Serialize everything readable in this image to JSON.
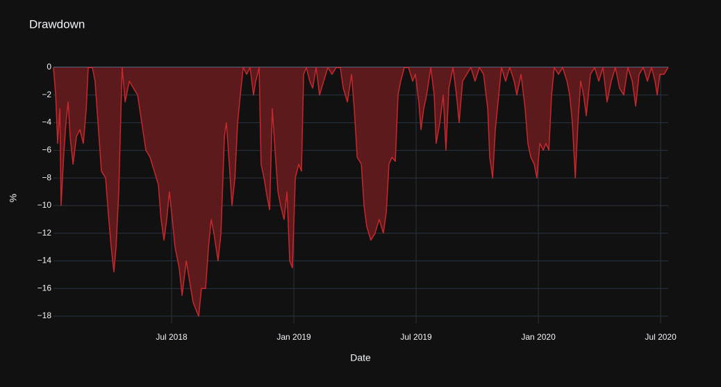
{
  "chart_data": {
    "type": "area",
    "title": "Drawdown",
    "x_label": "Date",
    "y_label": "%",
    "fill_color": "#5c1a1c",
    "line_color": "#c8282d",
    "grid": true,
    "xlim": [
      2018.017,
      2020.531
    ],
    "ylim": [
      -18.5,
      0
    ],
    "xticks": [
      {
        "value": 2018.5,
        "label": "Jul 2018"
      },
      {
        "value": 2019.0,
        "label": "Jan 2019"
      },
      {
        "value": 2019.5,
        "label": "Jul 2019"
      },
      {
        "value": 2020.0,
        "label": "Jan 2020"
      },
      {
        "value": 2020.5,
        "label": "Jul 2020"
      }
    ],
    "yticks": [
      0,
      {
        "value": -2,
        "label": "−2"
      },
      {
        "value": -4,
        "label": "−4"
      },
      {
        "value": -6,
        "label": "−6"
      },
      {
        "value": -8,
        "label": "−8"
      },
      {
        "value": -10,
        "label": "−10"
      },
      {
        "value": -12,
        "label": "−12"
      },
      {
        "value": -14,
        "label": "−14"
      },
      {
        "value": -16,
        "label": "−16"
      },
      {
        "value": -18,
        "label": "−18"
      }
    ],
    "x": [
      2018.017,
      2018.026,
      2018.034,
      2018.043,
      2018.048,
      2018.06,
      2018.068,
      2018.077,
      2018.085,
      2018.097,
      2018.111,
      2018.125,
      2018.139,
      2018.151,
      2018.159,
      2018.176,
      2018.187,
      2018.199,
      2018.213,
      2018.23,
      2018.241,
      2018.253,
      2018.264,
      2018.273,
      2018.284,
      2018.293,
      2018.298,
      2018.31,
      2018.327,
      2018.344,
      2018.361,
      2018.378,
      2018.395,
      2018.412,
      2018.429,
      2018.446,
      2018.457,
      2018.469,
      2018.48,
      2018.491,
      2018.503,
      2018.514,
      2018.531,
      2018.543,
      2018.56,
      2018.574,
      2018.588,
      2018.599,
      2018.611,
      2018.622,
      2018.639,
      2018.651,
      2018.662,
      2018.673,
      2018.69,
      2018.702,
      2018.716,
      2018.724,
      2018.736,
      2018.747,
      2018.759,
      2018.77,
      2018.781,
      2018.793,
      2018.807,
      2018.821,
      2018.835,
      2018.844,
      2018.858,
      2018.866,
      2018.878,
      2018.892,
      2018.901,
      2018.912,
      2018.923,
      2018.935,
      2018.946,
      2018.96,
      2018.972,
      2018.983,
      2018.994,
      2019.006,
      2019.02,
      2019.031,
      2019.04,
      2019.051,
      2019.065,
      2019.077,
      2019.091,
      2019.105,
      2019.122,
      2019.139,
      2019.156,
      2019.173,
      2019.19,
      2019.202,
      2019.219,
      2019.236,
      2019.247,
      2019.259,
      2019.276,
      2019.287,
      2019.298,
      2019.315,
      2019.332,
      2019.349,
      2019.366,
      2019.378,
      2019.389,
      2019.401,
      2019.415,
      2019.426,
      2019.437,
      2019.452,
      2019.469,
      2019.486,
      2019.497,
      2019.511,
      2019.52,
      2019.531,
      2019.543,
      2019.56,
      2019.574,
      2019.582,
      2019.597,
      2019.611,
      2019.622,
      2019.634,
      2019.651,
      2019.665,
      2019.676,
      2019.69,
      2019.707,
      2019.724,
      2019.741,
      2019.759,
      2019.776,
      2019.793,
      2019.801,
      2019.813,
      2019.824,
      2019.838,
      2019.849,
      2019.866,
      2019.883,
      2019.901,
      2019.912,
      2019.929,
      2019.946,
      2019.957,
      2019.969,
      2019.983,
      2019.994,
      2020.006,
      2020.02,
      2020.031,
      2020.043,
      2020.054,
      2020.065,
      2020.082,
      2020.099,
      2020.117,
      2020.128,
      2020.139,
      2020.151,
      2020.162,
      2020.173,
      2020.185,
      2020.196,
      2020.213,
      2020.23,
      2020.247,
      2020.264,
      2020.281,
      2020.298,
      2020.315,
      2020.332,
      2020.349,
      2020.366,
      2020.384,
      2020.398,
      2020.412,
      2020.429,
      2020.446,
      2020.463,
      2020.477,
      2020.486,
      2020.497,
      2020.514,
      2020.531
    ],
    "values": [
      0,
      -2,
      -5.5,
      -3,
      -10,
      -6,
      -4,
      -2.5,
      -5,
      -7,
      -5,
      -4.5,
      -5.5,
      -3,
      0,
      0,
      -1,
      -4,
      -7.5,
      -8,
      -10.5,
      -13,
      -14.8,
      -13,
      -9,
      -3,
      0,
      -2.5,
      -1,
      -1.5,
      -2,
      -4,
      -6,
      -6.5,
      -7.5,
      -8.5,
      -11,
      -12.5,
      -11,
      -9,
      -11,
      -13,
      -14.5,
      -16.5,
      -14,
      -15.5,
      -17,
      -17.5,
      -18,
      -16,
      -16,
      -13,
      -11,
      -12,
      -14,
      -12,
      -5,
      -4,
      -7,
      -10,
      -8,
      -4,
      -2,
      0,
      -0.5,
      0,
      -2,
      -1,
      0,
      -7,
      -8,
      -9.5,
      -10.3,
      -3,
      -6,
      -9,
      -10,
      -11,
      -9,
      -14,
      -14.5,
      -8,
      -7,
      -7.5,
      -0.5,
      0,
      -1,
      -1.5,
      0,
      -2,
      -1,
      0,
      -0.5,
      0,
      0,
      -1.5,
      -2.5,
      -0.5,
      -3,
      -6.5,
      -7,
      -10,
      -11.5,
      -12.5,
      -12,
      -11,
      -12,
      -10.5,
      -7,
      -6.5,
      -6.8,
      -2,
      -1,
      0,
      0,
      -1,
      -0.5,
      -2.5,
      -4.5,
      -3,
      -2,
      0,
      -2,
      -5.5,
      -4,
      -2,
      -6,
      -1.5,
      0,
      -2,
      -4,
      -1,
      -0.5,
      0,
      -1,
      0,
      -0.5,
      -3,
      -6.5,
      -8,
      -4.5,
      -2,
      0,
      -1,
      0,
      -1,
      -2,
      -0.5,
      -3,
      -5.5,
      -6.5,
      -7,
      -8,
      -5.5,
      -6,
      -5.5,
      -6,
      -2,
      0,
      -0.5,
      0,
      -1,
      -2,
      -4,
      -8,
      -4,
      -1,
      -2,
      -3.5,
      -0.5,
      0,
      -1,
      0,
      -2.5,
      -1,
      0,
      -1.5,
      -2,
      0,
      -1,
      -2.8,
      -0.5,
      0,
      -1,
      0,
      -1,
      -2,
      -0.5,
      -0.5,
      0
    ]
  }
}
